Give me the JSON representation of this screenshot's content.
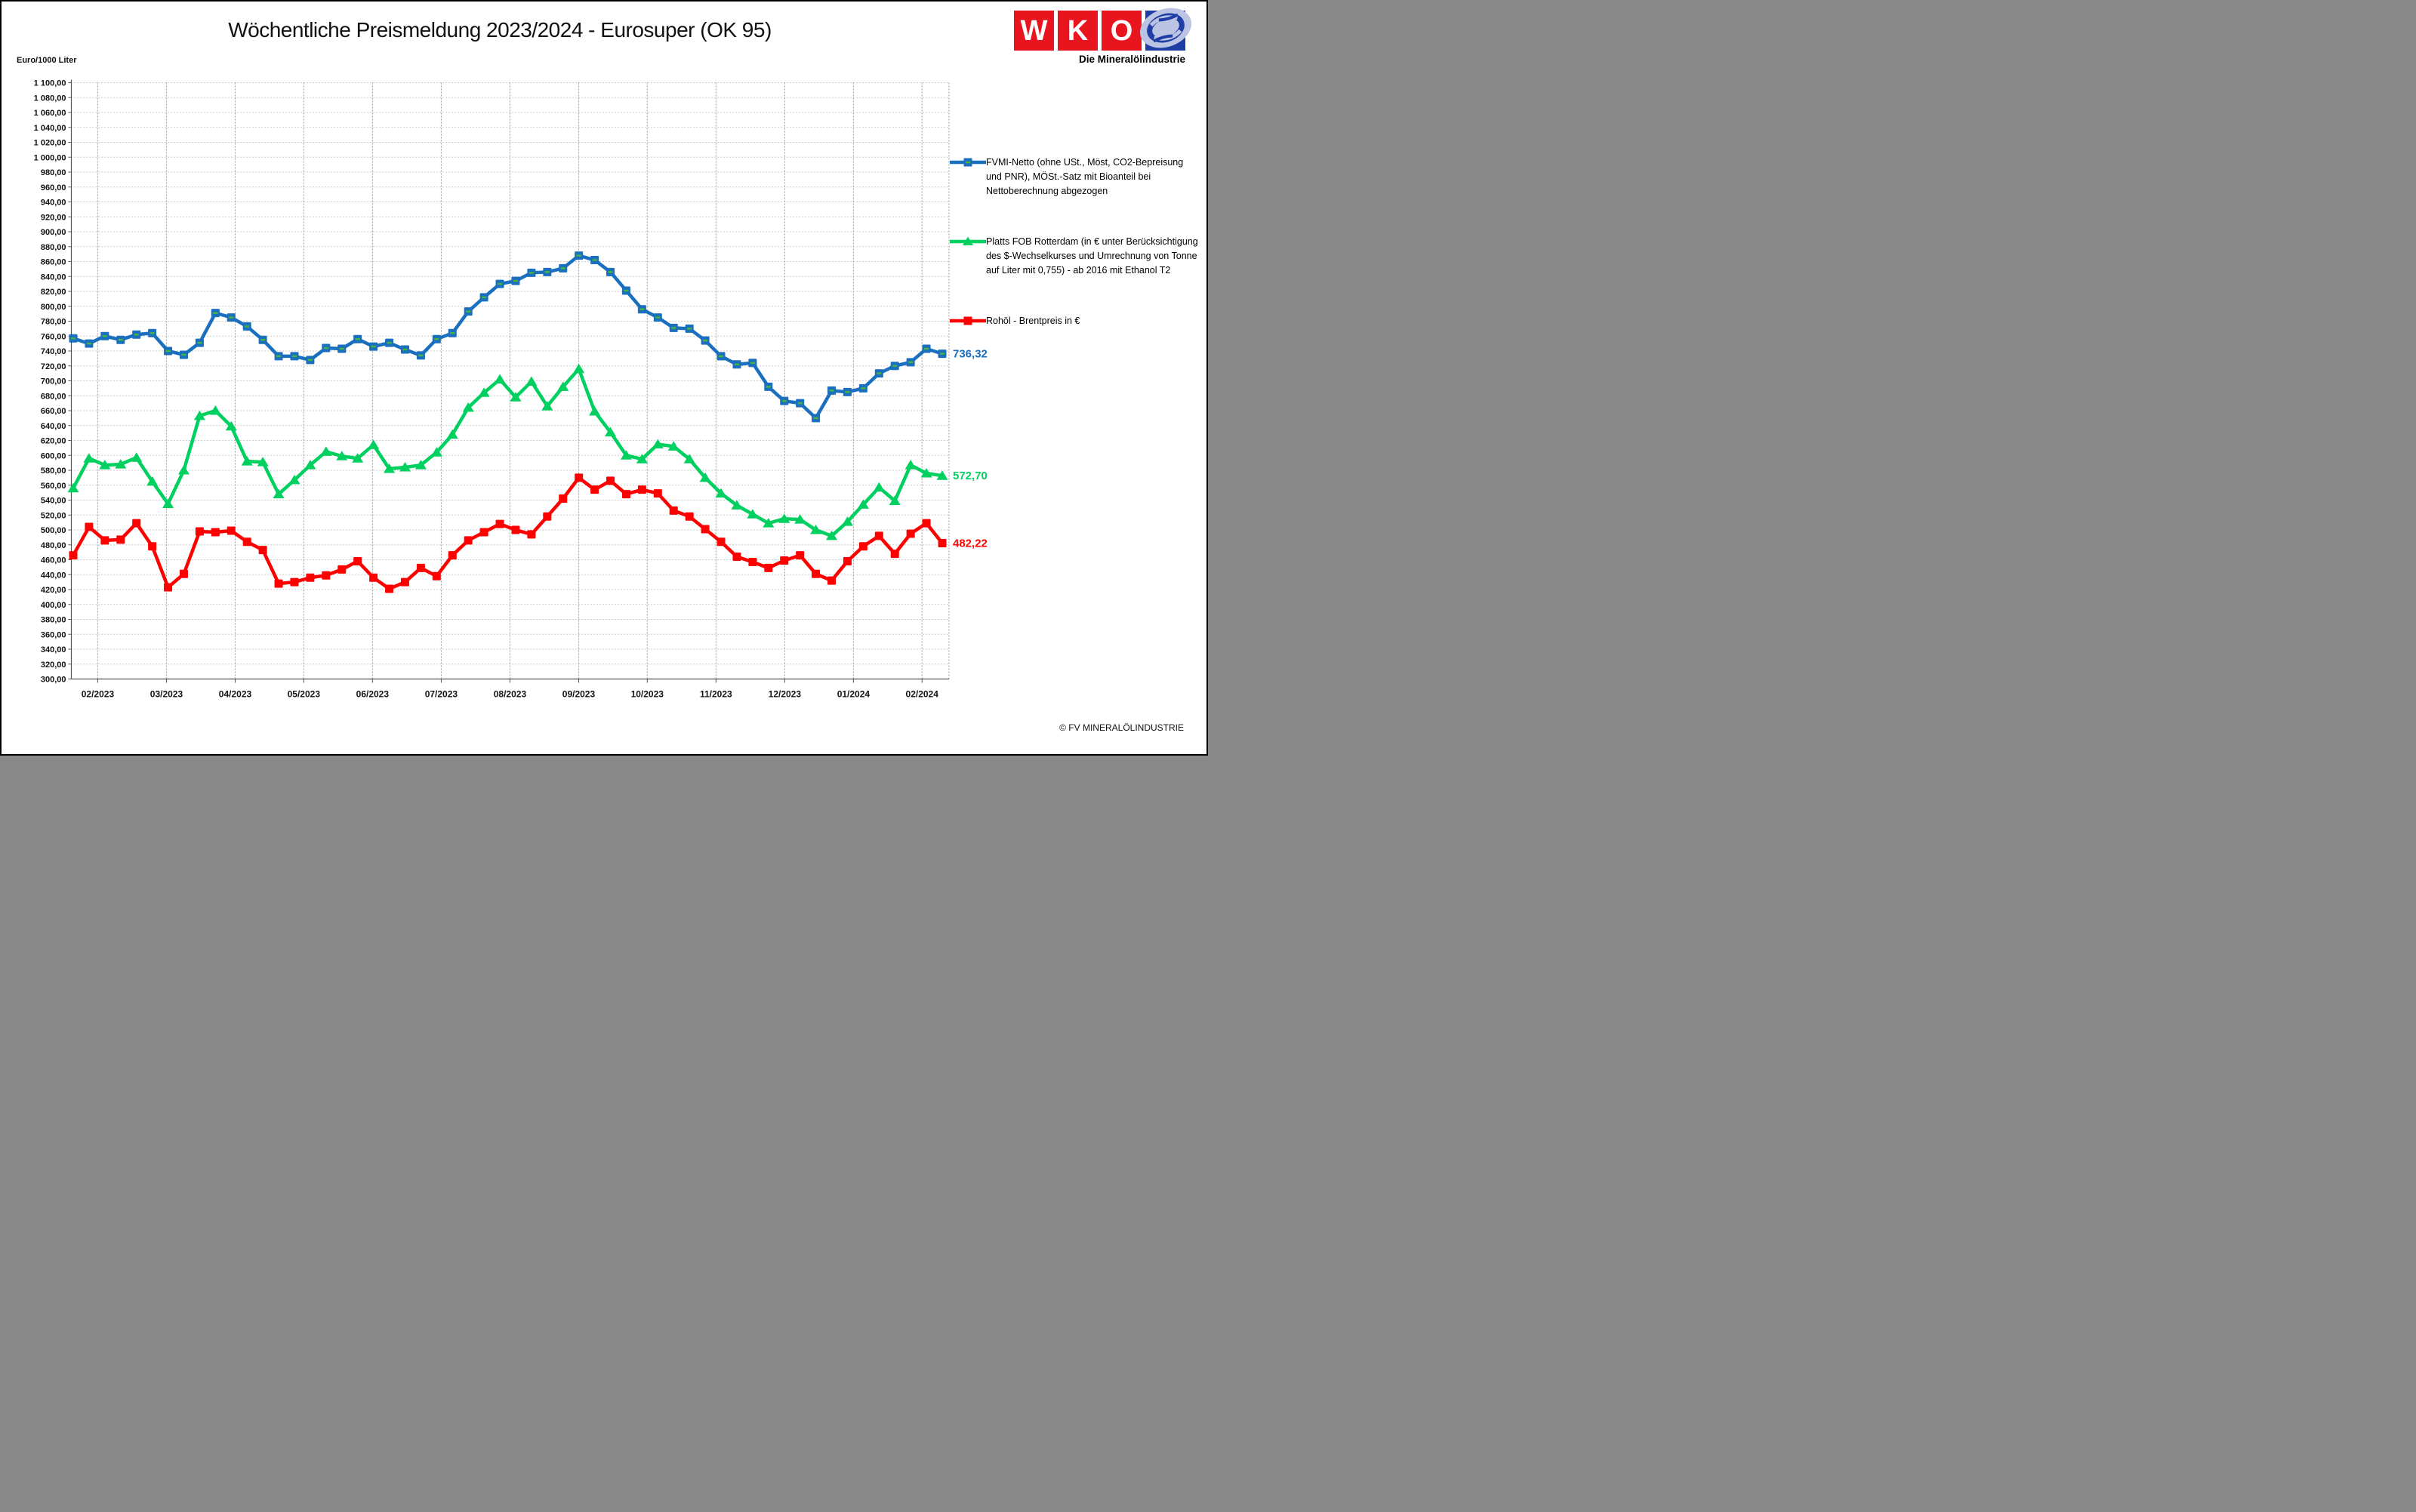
{
  "page": {
    "title": "Wöchentliche Preismeldung  2023/2024 - Eurosuper (OK 95)",
    "footer": "© FV MINERALÖLINDUSTRIE"
  },
  "logo": {
    "letters": [
      "W",
      "K",
      "O"
    ],
    "tagline": "Die Mineralölindustrie",
    "red": "#e8141e",
    "blue": "#1e3da5",
    "swirl_light": "#bcc4e4"
  },
  "chart_data": {
    "type": "line",
    "title": "Wöchentliche Preismeldung  2023/2024 - Eurosuper (OK 95)",
    "ylabel": "Euro/1000 Liter",
    "ylim": [
      300,
      1100
    ],
    "ytick_step": 20,
    "grid": true,
    "legend_position": "right",
    "x_weeks": 56,
    "months": [
      {
        "label": "02/2023",
        "week": 2.55
      },
      {
        "label": "03/2023",
        "week": 6.9
      },
      {
        "label": "04/2023",
        "week": 11.25
      },
      {
        "label": "05/2023",
        "week": 15.59
      },
      {
        "label": "06/2023",
        "week": 19.94
      },
      {
        "label": "07/2023",
        "week": 24.29
      },
      {
        "label": "08/2023",
        "week": 28.64
      },
      {
        "label": "09/2023",
        "week": 32.99
      },
      {
        "label": "10/2023",
        "week": 37.33
      },
      {
        "label": "11/2023",
        "week": 41.68
      },
      {
        "label": "12/2023",
        "week": 46.03
      },
      {
        "label": "01/2024",
        "week": 50.38
      },
      {
        "label": "02/2024",
        "week": 54.72
      }
    ],
    "series": [
      {
        "name": "FVMI-Netto",
        "color": "#1b6fbf",
        "marker": "square-dash",
        "marker_inner": "#46b33c",
        "end_label": "736,32",
        "values": [
          757,
          750,
          760,
          755,
          762,
          764,
          740,
          735,
          751,
          791,
          785,
          773,
          755,
          733,
          733,
          728,
          744,
          743,
          756,
          746,
          751,
          742,
          734,
          756,
          764,
          793,
          812,
          830,
          834,
          845,
          846,
          851,
          868,
          862,
          846,
          821,
          796,
          785,
          771,
          770,
          754,
          733,
          722,
          724,
          692,
          673,
          670,
          650,
          687,
          685,
          690,
          710,
          720,
          725,
          743,
          736.32
        ]
      },
      {
        "name": "Platts FOB Rotterdam",
        "color": "#00d05f",
        "marker": "triangle",
        "end_label": "572,70",
        "values": [
          556,
          596,
          587,
          588,
          597,
          565,
          535,
          580,
          653,
          660,
          639,
          592,
          591,
          548,
          567,
          587,
          605,
          599,
          596,
          614,
          582,
          584,
          587,
          604,
          628,
          664,
          684,
          702,
          678,
          699,
          666,
          692,
          716,
          659,
          631,
          600,
          595,
          615,
          612,
          595,
          570,
          549,
          533,
          521,
          509,
          515,
          514,
          500,
          492,
          511,
          534,
          557,
          539,
          587,
          576,
          572.7
        ]
      },
      {
        "name": "Rohöl - Brentpreis",
        "color": "#ff0000",
        "marker": "square",
        "end_label": "482,22",
        "values": [
          466,
          504,
          486,
          487,
          509,
          478,
          423,
          441,
          498,
          497,
          499,
          484,
          473,
          428,
          430,
          436,
          439,
          447,
          458,
          436,
          421,
          430,
          449,
          438,
          466,
          486,
          497,
          508,
          500,
          494,
          518,
          542,
          570,
          554,
          566,
          548,
          554,
          549,
          526,
          518,
          501,
          484,
          464,
          457,
          449,
          459,
          466,
          441,
          432,
          458,
          478,
          492,
          468,
          495,
          509,
          482.22
        ]
      }
    ],
    "legend_entries": [
      {
        "series": 0,
        "lines": [
          "FVMI-Netto (ohne USt., Möst, CO2-Bepreisung",
          "und PNR), MÖSt.-Satz mit Bioanteil bei",
          "Nettoberechnung abgezogen"
        ]
      },
      {
        "series": 1,
        "lines": [
          "Platts FOB Rotterdam (in € unter Berücksichtigung",
          "des $-Wechselkurses und Umrechnung von Tonne",
          "auf Liter mit 0,755) - ab 2016 mit Ethanol T2"
        ]
      },
      {
        "series": 2,
        "lines": [
          "Rohöl - Brentpreis in €"
        ]
      }
    ]
  }
}
